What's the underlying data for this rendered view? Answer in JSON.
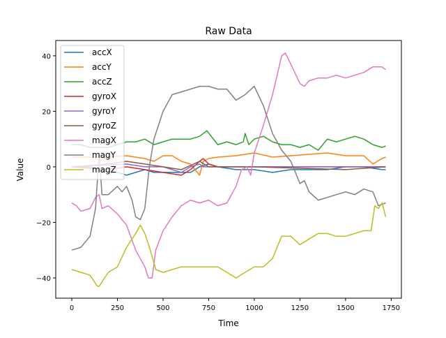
{
  "chart_data": {
    "type": "line",
    "title": "Raw Data",
    "xlabel": "Time",
    "ylabel": "Value",
    "xlim": [
      -88,
      1806
    ],
    "ylim": [
      -47.3,
      45.5
    ],
    "xticks": [
      0,
      250,
      500,
      750,
      1000,
      1250,
      1500,
      1750
    ],
    "yticks": [
      -40,
      -20,
      0,
      20,
      40
    ],
    "grid": false,
    "legend_position": "upper-left",
    "series": [
      {
        "name": "accX",
        "color": "#1f77b4",
        "x": [
          0,
          100,
          150,
          200,
          250,
          300,
          350,
          400,
          450,
          500,
          600,
          650,
          700,
          750,
          800,
          900,
          1000,
          1100,
          1200,
          1300,
          1400,
          1500,
          1600,
          1700,
          1720
        ],
        "y": [
          0,
          0,
          -1,
          -2,
          -2,
          -3,
          -2,
          -1,
          -2,
          -2,
          -2,
          -2,
          0,
          1,
          0,
          -1,
          -1,
          -2,
          -1,
          -1,
          -1,
          0,
          0,
          -1,
          -1
        ]
      },
      {
        "name": "accY",
        "color": "#ff7f0e",
        "x": [
          0,
          200,
          300,
          400,
          450,
          500,
          550,
          600,
          650,
          700,
          720,
          750,
          800,
          900,
          1000,
          1100,
          1200,
          1300,
          1400,
          1500,
          1600,
          1650,
          1700,
          1720
        ],
        "y": [
          3.5,
          3.5,
          4,
          3,
          2,
          4,
          4,
          2,
          1,
          -3,
          2,
          3,
          3.5,
          4,
          5,
          3.5,
          4,
          4.5,
          5,
          4,
          4,
          1,
          3,
          3.5
        ]
      },
      {
        "name": "accZ",
        "color": "#2ca02c",
        "x": [
          0,
          50,
          100,
          200,
          250,
          300,
          350,
          400,
          450,
          500,
          550,
          600,
          650,
          700,
          740,
          800,
          850,
          900,
          940,
          950,
          970,
          1000,
          1050,
          1100,
          1150,
          1200,
          1250,
          1300,
          1350,
          1400,
          1450,
          1500,
          1550,
          1600,
          1650,
          1700,
          1720
        ],
        "y": [
          8,
          8,
          7,
          7,
          8,
          9,
          9,
          10,
          8,
          9,
          10,
          10,
          10,
          11,
          13,
          8,
          9,
          8,
          9,
          12,
          8,
          10,
          11,
          9,
          8,
          8,
          7,
          8,
          6,
          10,
          9,
          10,
          11,
          10,
          8,
          7,
          7.5
        ]
      },
      {
        "name": "gyroX",
        "color": "#d62728",
        "x": [
          0,
          200,
          300,
          400,
          500,
          600,
          650,
          700,
          720,
          750,
          800,
          1000,
          1400,
          1720
        ],
        "y": [
          0,
          -1,
          0,
          -1,
          -2,
          -3,
          -1,
          2,
          3,
          1,
          0,
          0,
          0,
          0
        ]
      },
      {
        "name": "gyroY",
        "color": "#9467bd",
        "x": [
          0,
          300,
          400,
          500,
          600,
          650,
          700,
          720,
          800,
          1720
        ],
        "y": [
          0,
          1,
          0,
          0,
          -2,
          0,
          1,
          0,
          0,
          0
        ]
      },
      {
        "name": "gyroZ",
        "color": "#8c564b",
        "x": [
          0,
          200,
          300,
          400,
          500,
          600,
          700,
          750,
          1000,
          1500,
          1720
        ],
        "y": [
          0,
          1,
          2,
          1,
          0,
          -1,
          2,
          0,
          0,
          -1,
          0
        ]
      },
      {
        "name": "magX",
        "color": "#e377c2",
        "x": [
          0,
          25,
          50,
          100,
          130,
          150,
          165,
          200,
          250,
          300,
          350,
          400,
          420,
          440,
          460,
          500,
          550,
          600,
          650,
          700,
          750,
          800,
          850,
          900,
          930,
          960,
          980,
          1000,
          1050,
          1100,
          1150,
          1170,
          1200,
          1250,
          1275,
          1300,
          1350,
          1400,
          1450,
          1500,
          1550,
          1600,
          1650,
          1700,
          1720
        ],
        "y": [
          -13,
          -14,
          -16,
          -15,
          -11,
          -10,
          -15,
          -14,
          -17,
          -21,
          -30,
          -36,
          -40,
          -40,
          -30,
          -23,
          -18,
          -14,
          -12,
          -13,
          -12,
          -14,
          -13,
          -7,
          -1,
          0,
          -3,
          5,
          15,
          26,
          40,
          41,
          37,
          30,
          29,
          31,
          32,
          32,
          33,
          32,
          33,
          34,
          36,
          36,
          35
        ]
      },
      {
        "name": "magY",
        "color": "#7f7f7f",
        "x": [
          0,
          50,
          100,
          130,
          150,
          165,
          200,
          250,
          275,
          300,
          330,
          350,
          375,
          400,
          425,
          450,
          500,
          550,
          600,
          650,
          700,
          750,
          800,
          850,
          900,
          950,
          1000,
          1050,
          1100,
          1150,
          1200,
          1250,
          1275,
          1300,
          1350,
          1400,
          1450,
          1500,
          1550,
          1600,
          1650,
          1680,
          1720
        ],
        "y": [
          -30,
          -29,
          -25,
          -15,
          5,
          -10,
          -10,
          -7,
          -9,
          -7,
          -12,
          -18,
          -19,
          -15,
          0,
          10,
          20,
          26,
          27,
          28,
          29,
          29,
          28,
          28,
          24,
          26,
          29,
          22,
          12,
          6,
          2,
          -6,
          -5,
          -9,
          -12,
          -11,
          -10,
          -9,
          -10,
          -8,
          -9,
          -14,
          -13
        ]
      },
      {
        "name": "magZ",
        "color": "#bcbd22",
        "x": [
          0,
          50,
          100,
          140,
          150,
          200,
          250,
          300,
          350,
          375,
          400,
          430,
          460,
          500,
          550,
          600,
          650,
          700,
          750,
          800,
          850,
          900,
          950,
          1000,
          1050,
          1100,
          1150,
          1200,
          1250,
          1300,
          1350,
          1400,
          1450,
          1500,
          1550,
          1600,
          1640,
          1660,
          1680,
          1700,
          1720
        ],
        "y": [
          -37,
          -38,
          -39,
          -43,
          -43,
          -38,
          -36,
          -29,
          -24,
          -21,
          -24,
          -30,
          -37,
          -38,
          -37,
          -36,
          -36,
          -36,
          -36,
          -36,
          -38,
          -40,
          -38,
          -36,
          -36,
          -33,
          -25,
          -25,
          -28,
          -26,
          -24,
          -24,
          -25,
          -25,
          -24,
          -23,
          -23,
          -14,
          -15,
          -13,
          -18
        ]
      }
    ]
  }
}
